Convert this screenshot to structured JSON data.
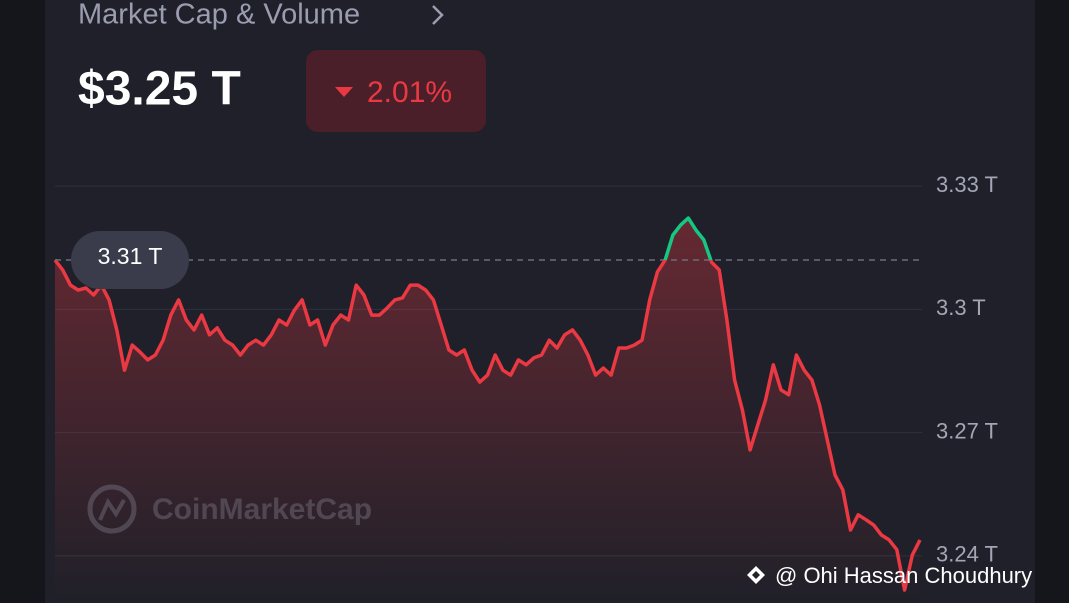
{
  "header": {
    "title": "Market Cap & Volume",
    "value": "$3.25 T",
    "change": "2.01%"
  },
  "chart_data": {
    "type": "line",
    "values": [
      3.312,
      3.3096,
      3.3059,
      3.3047,
      3.3052,
      3.3035,
      3.3059,
      3.3023,
      3.295,
      3.2852,
      3.2913,
      3.2896,
      3.2877,
      3.2889,
      3.2925,
      3.2986,
      3.3023,
      3.2974,
      3.295,
      3.2986,
      3.2938,
      3.2955,
      3.2925,
      3.2913,
      3.2889,
      3.2913,
      3.2925,
      3.2913,
      3.2938,
      3.2974,
      3.2962,
      3.2998,
      3.3023,
      3.2962,
      3.2974,
      3.2913,
      3.2962,
      3.2986,
      3.2974,
      3.3059,
      3.3035,
      3.2986,
      3.2986,
      3.3003,
      3.3023,
      3.3028,
      3.3059,
      3.3059,
      3.3047,
      3.3023,
      3.2962,
      3.2901,
      3.2889,
      3.2901,
      3.2852,
      3.2823,
      3.284,
      3.2889,
      3.2852,
      3.284,
      3.2877,
      3.2865,
      3.2882,
      3.2889,
      3.2925,
      3.2906,
      3.2938,
      3.295,
      3.2925,
      3.2889,
      3.284,
      3.2857,
      3.284,
      3.2906,
      3.2906,
      3.2913,
      3.2925,
      3.3023,
      3.3091,
      3.312,
      3.3181,
      3.3205,
      3.3222,
      3.3193,
      3.3169,
      3.3115,
      3.3096,
      3.2974,
      3.2828,
      3.2755,
      3.2658,
      3.2719,
      3.2779,
      3.2865,
      3.2804,
      3.2792,
      3.2889,
      3.2852,
      3.2828,
      3.2767,
      3.2682,
      3.2597,
      3.2561,
      3.2463,
      3.25,
      3.2488,
      3.2475,
      3.2451,
      3.2439,
      3.2415,
      3.2317,
      3.2402,
      3.2439
    ],
    "color": "#ea3943",
    "highlight_color": "#16c784",
    "ylim": [
      3.23,
      3.34
    ],
    "yticks": [
      {
        "value": 3.33,
        "label": "3.33 T"
      },
      {
        "value": 3.3,
        "label": "3.3 T"
      },
      {
        "value": 3.27,
        "label": "3.27 T"
      },
      {
        "value": 3.24,
        "label": "3.24 T"
      }
    ],
    "reference": {
      "value": 3.312,
      "label": "3.31 T"
    },
    "grid": true
  },
  "watermark": "CoinMarketCap",
  "credit": "@ Ohi Hassan Choudhury"
}
